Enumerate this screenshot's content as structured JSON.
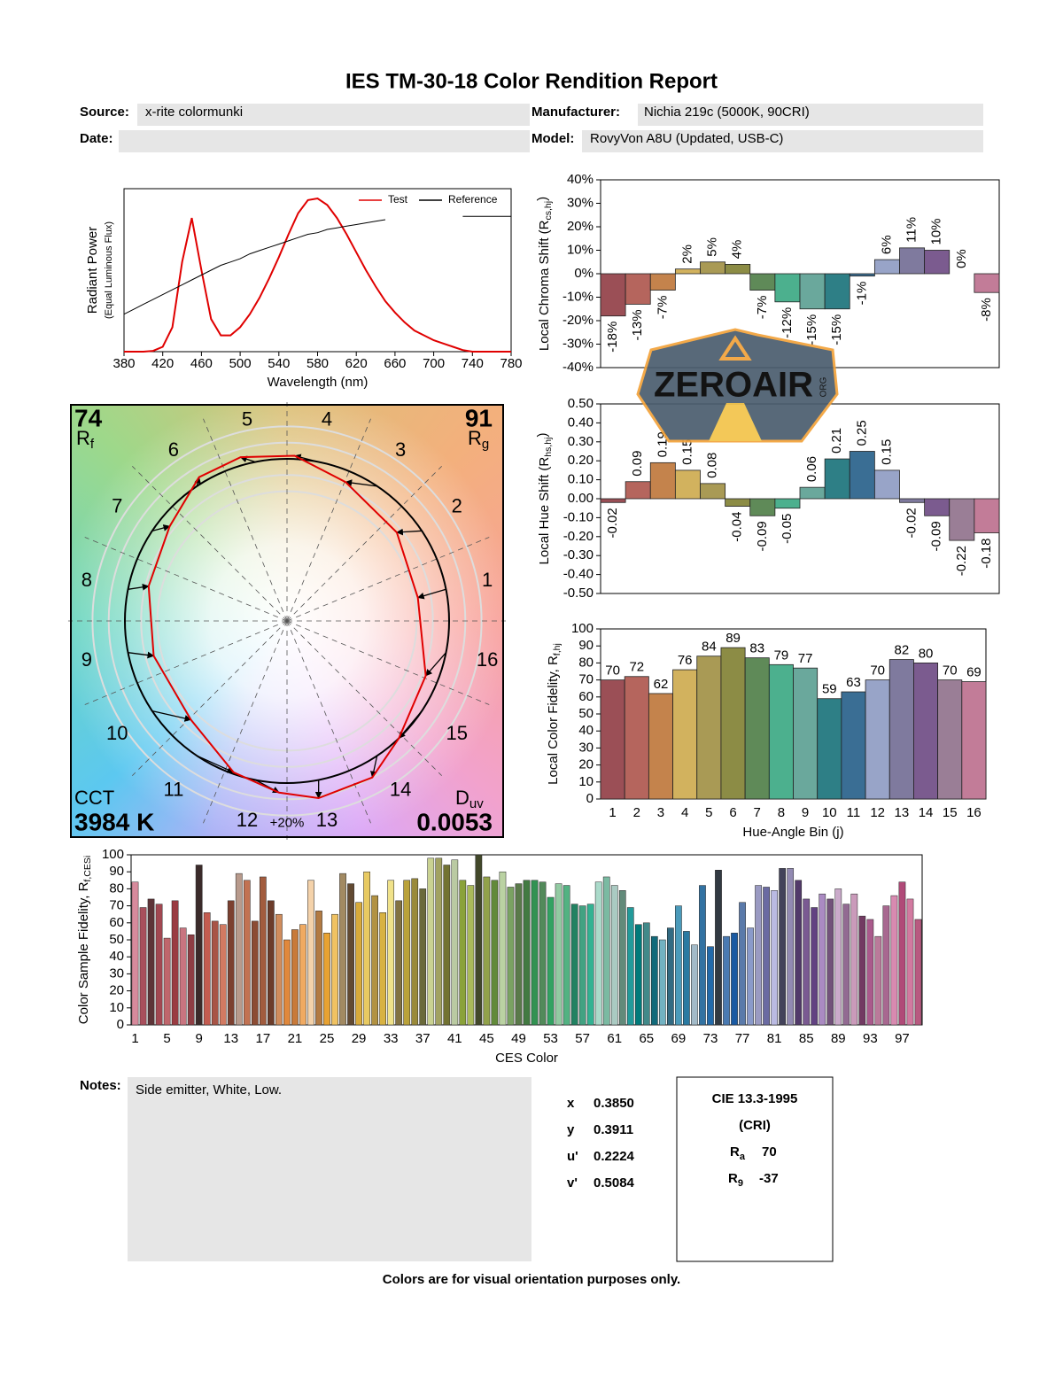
{
  "header": {
    "title": "IES TM-30-18 Color Rendition Report",
    "source_label": "Source:",
    "source": "x-rite colormunki",
    "manufacturer_label": "Manufacturer:",
    "manufacturer": "Nichia 219c (5000K, 90CRI)",
    "date_label": "Date:",
    "model_label": "Model:",
    "model": "RovyVon A8U (Updated, USB-C)"
  },
  "chart_data": [
    {
      "type": "line",
      "x_label": "Wavelength (nm)",
      "y_label": "Radiant Power",
      "y_label_note": "(Equal Luminous Flux)",
      "x": [
        380,
        390,
        400,
        410,
        420,
        430,
        440,
        450,
        460,
        470,
        480,
        490,
        500,
        510,
        520,
        530,
        540,
        550,
        560,
        570,
        580,
        590,
        600,
        610,
        620,
        630,
        640,
        650,
        660,
        670,
        680,
        690,
        700,
        710,
        720,
        730,
        740,
        750,
        760,
        770,
        780
      ],
      "series": [
        {
          "name": "Test",
          "color": "#e00000",
          "values": [
            0,
            0,
            0,
            0.005,
            0.03,
            0.15,
            0.55,
            0.82,
            0.5,
            0.2,
            0.1,
            0.1,
            0.15,
            0.23,
            0.33,
            0.45,
            0.58,
            0.72,
            0.85,
            0.93,
            0.94,
            0.9,
            0.82,
            0.72,
            0.61,
            0.5,
            0.4,
            0.31,
            0.24,
            0.18,
            0.13,
            0.1,
            0.07,
            0.05,
            0.03,
            0.01,
            0,
            0,
            0,
            0,
            0
          ]
        },
        {
          "name": "Reference",
          "color": "#000000",
          "values": [
            0.23,
            0.26,
            0.29,
            0.32,
            0.35,
            0.38,
            0.41,
            0.44,
            0.47,
            0.5,
            0.53,
            0.55,
            0.57,
            0.6,
            0.62,
            0.64,
            0.66,
            0.68,
            0.7,
            0.72,
            0.73,
            0.75,
            0.76,
            0.77,
            0.78,
            0.79,
            0.8,
            0.81,
            null,
            null,
            null,
            null,
            null,
            null,
            null,
            0.83,
            0.83,
            0.83,
            0.83,
            0.83,
            0.83
          ]
        }
      ],
      "xlim": [
        380,
        780
      ],
      "xticks": [
        380,
        420,
        460,
        500,
        540,
        580,
        620,
        660,
        700,
        740,
        780
      ],
      "ylim": [
        0,
        1
      ]
    },
    {
      "type": "vector",
      "rf": 74,
      "rf_label": "R",
      "rf_sub": "f",
      "rg": 91,
      "rg_label": "R",
      "rg_sub": "g",
      "cct_name": "CCT",
      "cct": {
        "value": 3984,
        "label": "3984 K"
      },
      "duv_label": "D",
      "duv_sub": "uv",
      "duv": 0.0053,
      "bins": [
        "1",
        "2",
        "3",
        "4",
        "5",
        "6",
        "7",
        "8",
        "9",
        "10",
        "11",
        "12",
        "13",
        "14",
        "15",
        "16"
      ],
      "scale_label": "+20%",
      "test_color": "#e00000",
      "reference_color": "#000000"
    },
    {
      "type": "bar",
      "y_label": "Local Chroma Shift (R",
      "y_label_sub": "cs,hj",
      "y_label_end": ")",
      "values": [
        -18,
        -13,
        -7,
        2,
        5,
        4,
        -7,
        -12,
        -15,
        -15,
        -1,
        6,
        11,
        10,
        0,
        -8
      ],
      "value_labels": [
        "-18%",
        "-13%",
        "-7%",
        "2%",
        "5%",
        "4%",
        "-7%",
        "-12%",
        "-15%",
        "-15%",
        "-1%",
        "6%",
        "11%",
        "10%",
        "0%",
        "-8%"
      ],
      "colors": [
        "#9b4f56",
        "#b5655d",
        "#c4834c",
        "#d2b25e",
        "#a99a55",
        "#8c8c45",
        "#5f8a58",
        "#4cb08e",
        "#6aa89c",
        "#2e7f86",
        "#3a6e94",
        "#98a4c8",
        "#7f7a9e",
        "#7b5b8f",
        "#9a7e96",
        "#c27c98"
      ],
      "ylim": [
        -40,
        40
      ],
      "yticks": [
        {
          "value": 40,
          "label": "40%"
        },
        {
          "value": 30,
          "label": "30%"
        },
        {
          "value": 20,
          "label": "20%"
        },
        {
          "value": 10,
          "label": "10%"
        },
        {
          "value": 0,
          "label": "0%"
        },
        {
          "value": -10,
          "label": "-10%"
        },
        {
          "value": -20,
          "label": "-20%"
        },
        {
          "value": -30,
          "label": "-30%"
        },
        {
          "value": -40,
          "label": "-40%"
        }
      ]
    },
    {
      "type": "bar",
      "y_label": "Local Hue Shift (R",
      "y_label_sub": "hs,hj",
      "y_label_end": ")",
      "values": [
        -0.02,
        0.09,
        0.19,
        0.15,
        0.08,
        -0.04,
        -0.09,
        -0.05,
        0.06,
        0.21,
        0.25,
        0.15,
        -0.02,
        -0.09,
        -0.22,
        -0.18
      ],
      "colors": [
        "#9b4f56",
        "#b5655d",
        "#c4834c",
        "#d2b25e",
        "#a99a55",
        "#8c8c45",
        "#5f8a58",
        "#4cb08e",
        "#6aa89c",
        "#2e7f86",
        "#3a6e94",
        "#98a4c8",
        "#7f7a9e",
        "#7b5b8f",
        "#9a7e96",
        "#c27c98"
      ],
      "ylim": [
        -0.5,
        0.5
      ],
      "yticks": [
        {
          "value": 0.5,
          "label": "0.50"
        },
        {
          "value": 0.4,
          "label": "0.40"
        },
        {
          "value": 0.3,
          "label": "0.30"
        },
        {
          "value": 0.2,
          "label": "0.20"
        },
        {
          "value": 0.1,
          "label": "0.10"
        },
        {
          "value": 0,
          "label": "0.00"
        },
        {
          "value": -0.1,
          "label": "-0.10"
        },
        {
          "value": -0.2,
          "label": "-0.20"
        },
        {
          "value": -0.3,
          "label": "-0.30"
        },
        {
          "value": -0.4,
          "label": "-0.40"
        },
        {
          "value": -0.5,
          "label": "-0.50"
        }
      ]
    },
    {
      "type": "bar",
      "y_label": "Local Color Fidelity, R",
      "y_label_sub": "f,hj",
      "x_label": "Hue-Angle Bin (j)",
      "categories": [
        "1",
        "2",
        "3",
        "4",
        "5",
        "6",
        "7",
        "8",
        "9",
        "10",
        "11",
        "12",
        "13",
        "14",
        "15",
        "16"
      ],
      "values": [
        70,
        72,
        62,
        76,
        84,
        89,
        83,
        79,
        77,
        59,
        63,
        70,
        82,
        80,
        70,
        69
      ],
      "colors": [
        "#9b4f56",
        "#b5655d",
        "#c4834c",
        "#d2b25e",
        "#a99a55",
        "#8c8c45",
        "#5f8a58",
        "#4cb08e",
        "#6aa89c",
        "#2e7f86",
        "#3a6e94",
        "#98a4c8",
        "#7f7a9e",
        "#7b5b8f",
        "#9a7e96",
        "#c27c98"
      ],
      "ylim": [
        0,
        100
      ],
      "yticks": [
        0,
        10,
        20,
        30,
        40,
        50,
        60,
        70,
        80,
        90,
        100
      ]
    },
    {
      "type": "bar",
      "y_label": "Color Sample Fidelity, R",
      "y_label_sub": "f,CESi",
      "x_label": "CES Color",
      "categories": [
        "1",
        null,
        null,
        null,
        "5",
        null,
        null,
        null,
        "9",
        null,
        null,
        null,
        "13",
        null,
        null,
        null,
        "17",
        null,
        null,
        null,
        "21",
        null,
        null,
        null,
        "25",
        null,
        null,
        null,
        "29",
        null,
        null,
        null,
        "33",
        null,
        null,
        null,
        "37",
        null,
        null,
        null,
        "41",
        null,
        null,
        null,
        "45",
        null,
        null,
        null,
        "49",
        null,
        null,
        null,
        "53",
        null,
        null,
        null,
        "57",
        null,
        null,
        null,
        "61",
        null,
        null,
        null,
        "65",
        null,
        null,
        null,
        "69",
        null,
        null,
        null,
        "73",
        null,
        null,
        null,
        "77",
        null,
        null,
        null,
        "81",
        null,
        null,
        null,
        "85",
        null,
        null,
        null,
        "89",
        null,
        null,
        null,
        "93",
        null,
        null,
        null,
        "97",
        null,
        null
      ],
      "values": [
        84,
        69,
        74,
        71,
        51,
        73,
        57,
        53,
        94,
        66,
        61,
        59,
        73,
        89,
        85,
        61,
        87,
        73,
        65,
        50,
        56,
        59,
        85,
        67,
        54,
        65,
        89,
        83,
        72,
        90,
        76,
        66,
        85,
        73,
        85,
        86,
        80,
        98,
        98,
        94,
        97,
        85,
        82,
        100,
        87,
        85,
        90,
        81,
        83,
        85,
        85,
        84,
        75,
        83,
        82,
        71,
        70,
        71,
        84,
        87,
        82,
        79,
        69,
        59,
        60,
        52,
        50,
        57,
        70,
        55,
        47,
        82,
        46,
        91,
        52,
        54,
        72,
        57,
        82,
        81,
        79,
        92,
        92,
        85,
        74,
        69,
        77,
        74,
        80,
        71,
        77,
        64,
        62,
        52,
        70,
        76,
        84,
        74,
        62
      ],
      "colors": [
        "#d78a9c",
        "#a94f5c",
        "#5e3438",
        "#a34852",
        "#c0666c",
        "#9a3c42",
        "#c97580",
        "#8e3e44",
        "#3b2b2a",
        "#c45c50",
        "#a85446",
        "#d27a62",
        "#7c4030",
        "#b89a8c",
        "#c27252",
        "#8c4c34",
        "#a25c3e",
        "#6c3c2a",
        "#d08c5c",
        "#e0883c",
        "#c87a3a",
        "#f0aa62",
        "#f4d2aa",
        "#b27a42",
        "#e8a232",
        "#f0c262",
        "#a28a62",
        "#624a32",
        "#d8aa3a",
        "#e8ca62",
        "#b29242",
        "#d8b242",
        "#f0e28a",
        "#827242",
        "#baa23a",
        "#9a8a3a",
        "#6a6a3a",
        "#cad292",
        "#a2a262",
        "#727232",
        "#bacaa2",
        "#8aa23a",
        "#aaba5a",
        "#42482a",
        "#92a24a",
        "#628a3a",
        "#bad2a2",
        "#7aa262",
        "#5a7a4a",
        "#427a42",
        "#329252",
        "#528a5a",
        "#32a262",
        "#92caa2",
        "#52b282",
        "#228262",
        "#42a282",
        "#32b292",
        "#aadaca",
        "#7abaa2",
        "#aacac2",
        "#628a7a",
        "#229a9a",
        "#007a7a",
        "#428a8a",
        "#126a7a",
        "#72b2c2",
        "#326a82",
        "#4a9aba",
        "#2a7aa2",
        "#a2bac8",
        "#3272a2",
        "#226aaa",
        "#323a42",
        "#4a7ab2",
        "#1a5aa2",
        "#5a7aaa",
        "#8a9aca",
        "#9a9ac2",
        "#6a6aa2",
        "#babae2",
        "#42425a",
        "#928ab2",
        "#523a6a",
        "#7a5a92",
        "#624282",
        "#aa8ac2",
        "#72527a",
        "#caaaca",
        "#926a92",
        "#ca9aba",
        "#723a62",
        "#aa5a8c",
        "#ba7a9a",
        "#a86890",
        "#d88ab0",
        "#b04a78",
        "#d27aa0",
        "#b85a80"
      ],
      "ylim": [
        0,
        100
      ],
      "yticks": [
        0,
        10,
        20,
        30,
        40,
        50,
        60,
        70,
        80,
        90,
        100
      ]
    }
  ],
  "notes": {
    "label": "Notes:",
    "text": "Side emitter, White, Low."
  },
  "chromaticity": {
    "rows": [
      [
        "x",
        "0.3850"
      ],
      [
        "y",
        "0.3911"
      ],
      [
        "u'",
        "0.2224"
      ],
      [
        "v'",
        "0.5084"
      ]
    ]
  },
  "cri": {
    "title": "CIE 13.3-1995",
    "subtitle": "(CRI)",
    "ra_label": "R",
    "ra_sub": "a",
    "ra": 70,
    "r9_label": "R",
    "r9_sub": "9",
    "r9": -37
  },
  "footer": "Colors are for visual orientation purposes only.",
  "watermark": {
    "text": "ZEROAIR",
    "suffix": "ORG"
  }
}
